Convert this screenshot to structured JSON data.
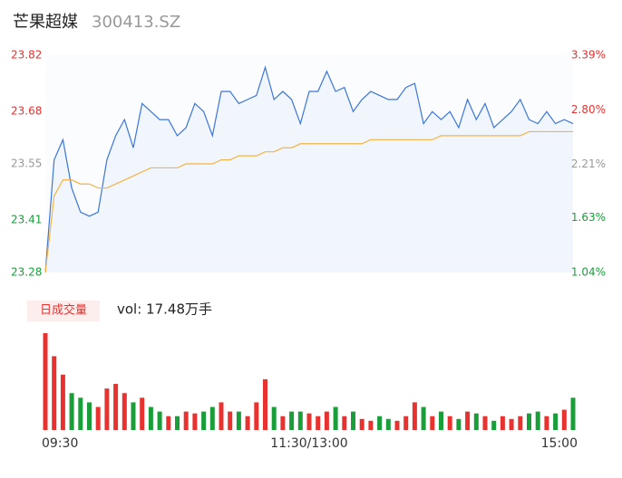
{
  "header": {
    "name": "芒果超媒",
    "code": "300413.SZ"
  },
  "chart_data": {
    "type": "line",
    "x": [
      0,
      4,
      8,
      12,
      16,
      20,
      24,
      28,
      32,
      36,
      40,
      44,
      48,
      52,
      56,
      60,
      64,
      68,
      72,
      76,
      80,
      84,
      88,
      92,
      96,
      100,
      104,
      108,
      112,
      116,
      120,
      124,
      128,
      132,
      136,
      140,
      144,
      148,
      152,
      156,
      160,
      164,
      168,
      172,
      176,
      180,
      184,
      188,
      192,
      196,
      200,
      204,
      208,
      212,
      216,
      220,
      224,
      228,
      232,
      236,
      240
    ],
    "xlim": [
      0,
      240
    ],
    "xticks": [
      {
        "value": 0,
        "label": "09:30"
      },
      {
        "value": 120,
        "label": "11:30/13:00"
      },
      {
        "value": 240,
        "label": "15:00"
      }
    ],
    "ylim": [
      23.28,
      23.82
    ],
    "yticks": [
      23.82,
      23.68,
      23.55,
      23.41,
      23.28
    ],
    "ytick_colors": [
      "#e8322f",
      "#e8322f",
      "#999999",
      "#1a9e3a",
      "#1a9e3a"
    ],
    "y2lim": [
      1.04,
      3.39
    ],
    "y2ticks": [
      {
        "value": 3.39,
        "label": "3.39%"
      },
      {
        "value": 2.8,
        "label": "2.80%"
      },
      {
        "value": 2.21,
        "label": "2.21%"
      },
      {
        "value": 1.63,
        "label": "1.63%"
      },
      {
        "value": 1.04,
        "label": "1.04%"
      }
    ],
    "series": [
      {
        "name": "price",
        "color": "#3b76d9",
        "values": [
          23.28,
          23.56,
          23.61,
          23.49,
          23.43,
          23.42,
          23.43,
          23.56,
          23.62,
          23.66,
          23.59,
          23.7,
          23.68,
          23.66,
          23.66,
          23.62,
          23.64,
          23.7,
          23.68,
          23.62,
          23.73,
          23.73,
          23.7,
          23.71,
          23.72,
          23.79,
          23.71,
          23.73,
          23.71,
          23.65,
          23.73,
          23.73,
          23.78,
          23.73,
          23.74,
          23.68,
          23.71,
          23.73,
          23.72,
          23.71,
          23.71,
          23.74,
          23.75,
          23.65,
          23.68,
          23.66,
          23.68,
          23.64,
          23.71,
          23.66,
          23.7,
          23.64,
          23.66,
          23.68,
          23.71,
          23.66,
          23.65,
          23.68,
          23.65,
          23.66,
          23.65
        ]
      },
      {
        "name": "avg",
        "color": "#f5b342",
        "values": [
          23.28,
          23.47,
          23.51,
          23.51,
          23.5,
          23.5,
          23.49,
          23.49,
          23.5,
          23.51,
          23.52,
          23.53,
          23.54,
          23.54,
          23.54,
          23.54,
          23.55,
          23.55,
          23.55,
          23.55,
          23.56,
          23.56,
          23.57,
          23.57,
          23.57,
          23.58,
          23.58,
          23.59,
          23.59,
          23.6,
          23.6,
          23.6,
          23.6,
          23.6,
          23.6,
          23.6,
          23.6,
          23.61,
          23.61,
          23.61,
          23.61,
          23.61,
          23.61,
          23.61,
          23.61,
          23.62,
          23.62,
          23.62,
          23.62,
          23.62,
          23.62,
          23.62,
          23.62,
          23.62,
          23.62,
          23.63,
          23.63,
          23.63,
          23.63,
          23.63,
          23.63
        ]
      }
    ],
    "volume": {
      "legend": "日成交量",
      "summary": "vol: 17.48万手",
      "up_color": "#e8322f",
      "down_color": "#1a9e3a",
      "values": [
        105,
        80,
        60,
        40,
        35,
        30,
        25,
        45,
        50,
        40,
        30,
        35,
        25,
        20,
        15,
        15,
        20,
        18,
        20,
        25,
        30,
        20,
        20,
        15,
        30,
        55,
        25,
        15,
        20,
        20,
        18,
        15,
        20,
        25,
        15,
        20,
        12,
        10,
        15,
        12,
        10,
        15,
        30,
        25,
        15,
        20,
        15,
        12,
        20,
        18,
        15,
        10,
        15,
        12,
        15,
        18,
        20,
        15,
        18,
        22,
        35
      ]
    }
  }
}
